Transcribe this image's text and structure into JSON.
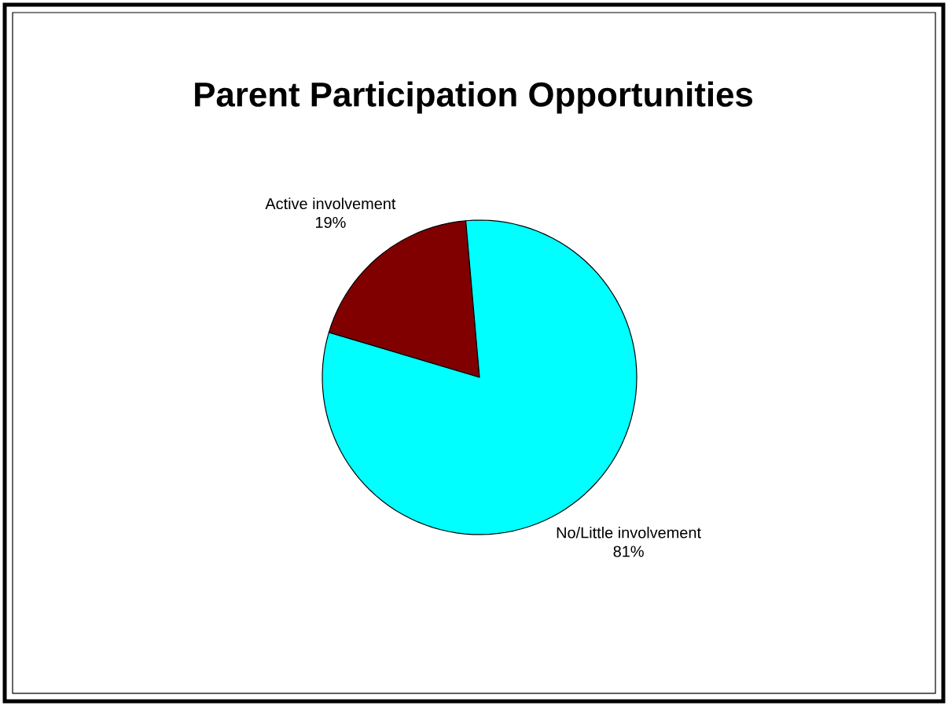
{
  "chart_data": {
    "type": "pie",
    "title": "Parent Participation Opportunities",
    "categories": [
      "Active involvement",
      "No/Little involvement"
    ],
    "values": [
      19,
      81
    ],
    "colors": [
      "#800000",
      "#00ffff"
    ],
    "value_labels": [
      "19%",
      "81%"
    ]
  }
}
